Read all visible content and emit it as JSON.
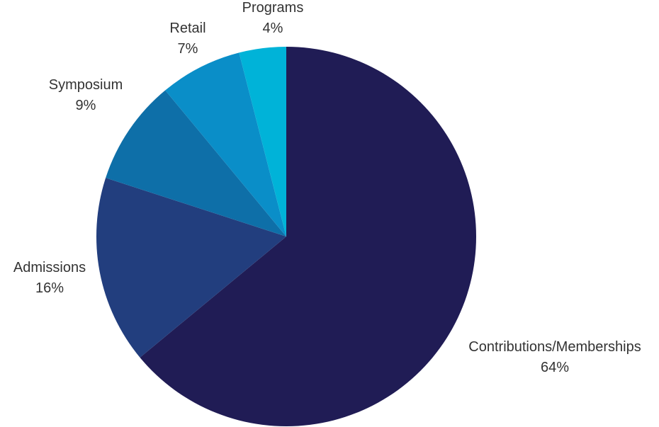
{
  "chart_data": {
    "type": "pie",
    "start_angle": "12 o'clock",
    "direction": "clockwise",
    "slices": [
      {
        "label": "Contributions/Memberships",
        "value_text": "64%",
        "value": 64,
        "color": "#201c55"
      },
      {
        "label": "Admissions",
        "value_text": "16%",
        "value": 16,
        "color": "#223e7e"
      },
      {
        "label": "Symposium",
        "value_text": "9%",
        "value": 9,
        "color": "#0e6fa8"
      },
      {
        "label": "Retail",
        "value_text": "7%",
        "value": 7,
        "color": "#0a8ec8"
      },
      {
        "label": "Programs",
        "value_text": "4%",
        "value": 4,
        "color": "#00b3d8"
      }
    ]
  }
}
